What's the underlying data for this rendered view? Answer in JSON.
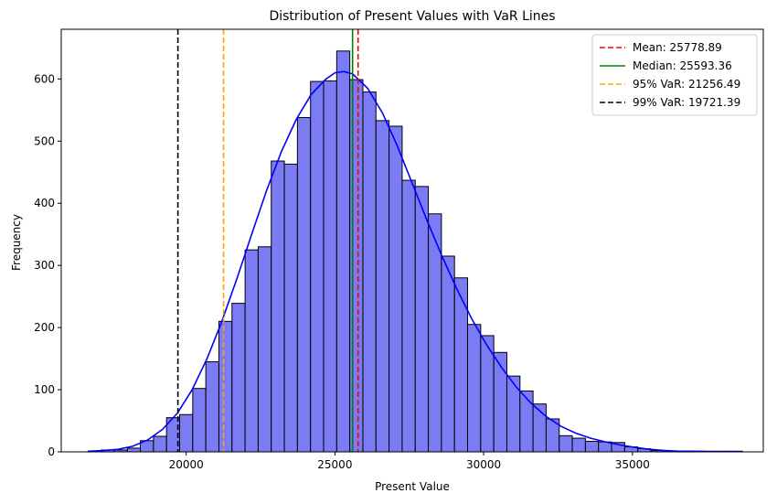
{
  "chart_data": {
    "type": "bar",
    "title": "Distribution of Present Values with VaR Lines",
    "xlabel": "Present Value",
    "ylabel": "Frequency",
    "xlim": [
      15800,
      39400
    ],
    "ylim": [
      0,
      680
    ],
    "xticks": [
      20000,
      25000,
      30000,
      35000
    ],
    "xtick_labels": [
      "20000",
      "25000",
      "30000",
      "35000"
    ],
    "yticks": [
      0,
      100,
      200,
      300,
      400,
      500,
      600
    ],
    "ytick_labels": [
      "0",
      "100",
      "200",
      "300",
      "400",
      "500",
      "600"
    ],
    "grid": false,
    "legend_position": "top-right",
    "histogram": {
      "bin_edges": [
        16700,
        17140,
        17580,
        18020,
        18460,
        18900,
        19340,
        19780,
        20220,
        20660,
        21100,
        21540,
        21980,
        22420,
        22860,
        23300,
        23740,
        24180,
        24620,
        25060,
        25500,
        25940,
        26380,
        26820,
        27260,
        27700,
        28140,
        28580,
        29020,
        29460,
        29900,
        30340,
        30780,
        31220,
        31660,
        32100,
        32540,
        32980,
        33420,
        33860,
        34300,
        34740,
        35180,
        35620,
        36060,
        36500,
        36940,
        37380,
        37820,
        38260,
        38700
      ],
      "counts": [
        1,
        3,
        3,
        6,
        18,
        25,
        55,
        60,
        102,
        145,
        210,
        239,
        325,
        330,
        468,
        463,
        538,
        596,
        597,
        645,
        599,
        579,
        533,
        524,
        437,
        427,
        383,
        315,
        280,
        205,
        187,
        160,
        122,
        98,
        77,
        53,
        26,
        22,
        17,
        16,
        15,
        8,
        5,
        2,
        1,
        1,
        1,
        1,
        1,
        1
      ],
      "fill": "#7b7bf4",
      "edge": "#000000"
    },
    "kde": {
      "name": "",
      "color": "#0000ff",
      "x": [
        16700,
        17200,
        17700,
        18200,
        18700,
        19200,
        19700,
        20200,
        20700,
        21200,
        21700,
        22200,
        22700,
        23200,
        23700,
        24200,
        24700,
        25000,
        25300,
        25600,
        26100,
        26600,
        27100,
        27600,
        28100,
        28600,
        29100,
        29600,
        30100,
        30600,
        31100,
        31600,
        32100,
        32600,
        33100,
        33600,
        34100,
        34600,
        35100,
        35600,
        36100,
        36600,
        37100,
        37600,
        38100,
        38700
      ],
      "y": [
        1,
        2,
        4,
        9,
        19,
        36,
        62,
        100,
        150,
        210,
        278,
        350,
        420,
        483,
        535,
        575,
        600,
        610,
        612,
        608,
        585,
        545,
        492,
        432,
        372,
        315,
        262,
        214,
        172,
        136,
        104,
        78,
        57,
        41,
        30,
        22,
        16,
        11,
        7,
        4,
        2,
        1,
        1,
        0.5,
        0.5,
        0.5
      ]
    },
    "vlines": [
      {
        "label": "Mean: 25778.89",
        "x": 25778.89,
        "color": "#ff0000",
        "dash": true
      },
      {
        "label": "Median: 25593.36",
        "x": 25593.36,
        "color": "#008000",
        "dash": false
      },
      {
        "label": "95% VaR: 21256.49",
        "x": 21256.49,
        "color": "#ffa500",
        "dash": true
      },
      {
        "label": "99% VaR: 19721.39",
        "x": 19721.39,
        "color": "#000000",
        "dash": true
      }
    ]
  }
}
